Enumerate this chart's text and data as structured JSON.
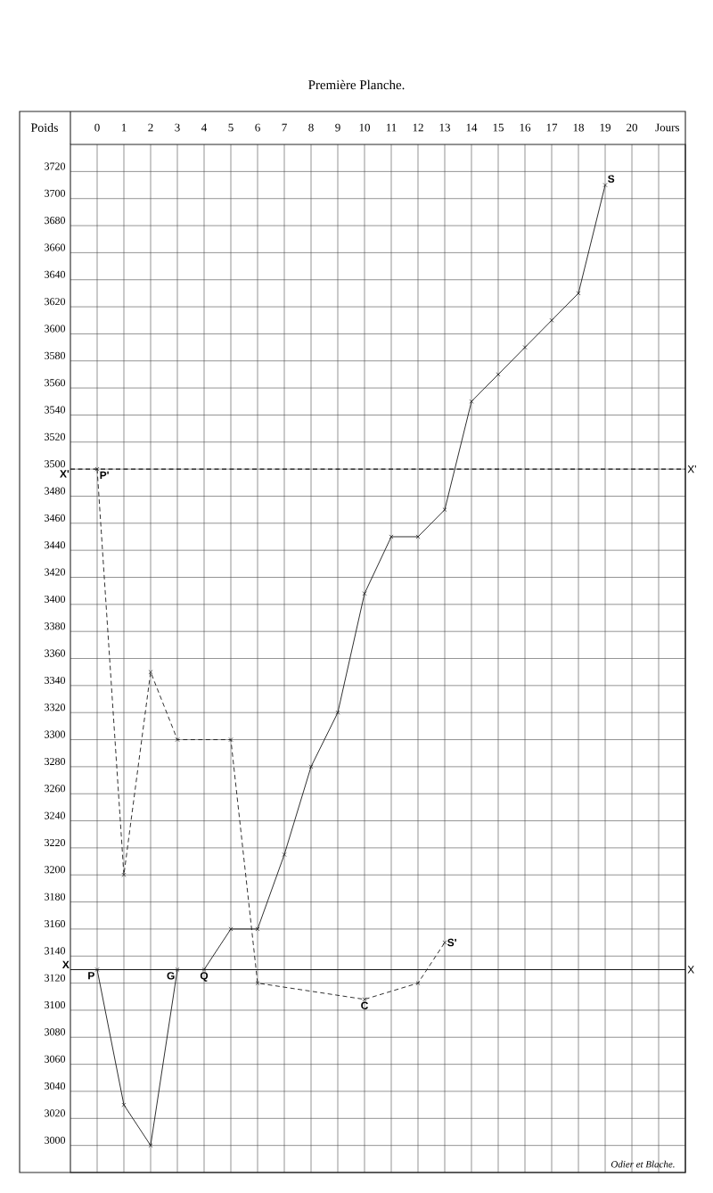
{
  "chart_data": {
    "type": "line",
    "title": "Première Planche.",
    "xlabel": "Jours",
    "ylabel": "Poids",
    "xlim": [
      -1,
      22
    ],
    "ylim": [
      2980,
      3740
    ],
    "xticks": [
      0,
      1,
      2,
      3,
      4,
      5,
      6,
      7,
      8,
      9,
      10,
      11,
      12,
      13,
      14,
      15,
      16,
      17,
      18,
      19,
      20,
      {
        "value": 21,
        "label": null
      }
    ],
    "yticks": [
      3000,
      3020,
      3040,
      3060,
      3080,
      3100,
      3120,
      3140,
      3160,
      3180,
      3200,
      3220,
      3240,
      3260,
      3280,
      3300,
      3320,
      3340,
      3360,
      3380,
      3400,
      3420,
      3440,
      3460,
      3480,
      3500,
      3520,
      3540,
      3560,
      3580,
      3600,
      3620,
      3640,
      3660,
      3680,
      3700,
      3720
    ],
    "grid": true,
    "marker": "cross",
    "series": [
      {
        "color": "#1a1a1a",
        "line_style": "solid",
        "x": [
          0,
          1,
          2,
          3,
          4,
          5,
          6,
          7,
          8,
          9,
          10,
          11,
          12,
          13,
          14,
          15,
          16,
          17,
          18,
          19
        ],
        "values": [
          3130,
          3030,
          3000,
          3130,
          3130,
          3160,
          3160,
          3215,
          3280,
          3320,
          3408,
          3450,
          3450,
          3470,
          3550,
          3570,
          3590,
          3610,
          3630,
          3710
        ]
      },
      {
        "color": "#1a1a1a",
        "line_style": "dashed",
        "x": [
          0,
          1,
          2,
          3,
          5,
          6,
          10,
          12,
          13
        ],
        "values": [
          3500,
          3200,
          3350,
          3300,
          3300,
          3120,
          3108,
          3120,
          3150
        ]
      }
    ],
    "ref_lines": [
      {
        "axis": "y",
        "value": 3130,
        "label": "X",
        "line_style": "solid"
      },
      {
        "axis": "y",
        "value": 3500,
        "label": "X'",
        "line_style": "dashed"
      }
    ],
    "annotations": [
      {
        "text": "P",
        "x": 0,
        "y": 3130
      },
      {
        "text": "G",
        "x": 3,
        "y": 3130
      },
      {
        "text": "Q",
        "x": 4,
        "y": 3130
      },
      {
        "text": "S",
        "x": 19,
        "y": 3710
      },
      {
        "text": "P'",
        "x": 0,
        "y": 3500
      },
      {
        "text": "C",
        "x": 10,
        "y": 3108
      },
      {
        "text": "S'",
        "x": 13,
        "y": 3150
      },
      "Odier et Blache."
    ]
  }
}
